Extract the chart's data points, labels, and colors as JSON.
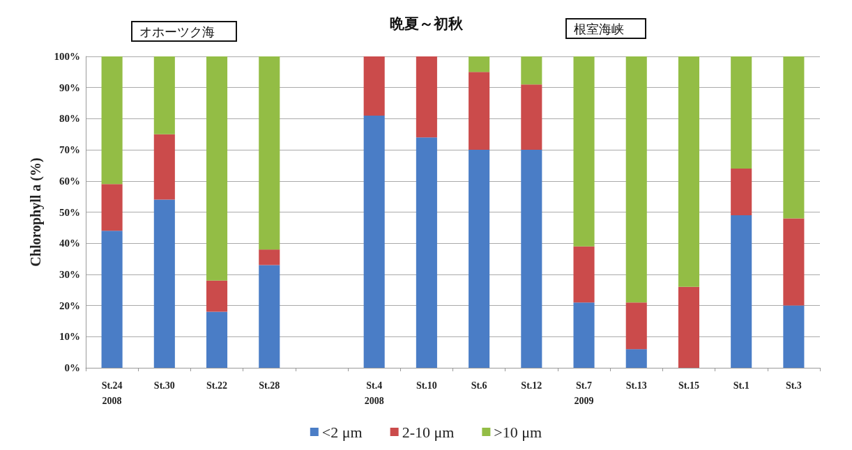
{
  "chart_data": {
    "type": "bar",
    "stacked": true,
    "title": "晩夏～初秋",
    "ylabel": "Chlorophyll a (%)",
    "annotations": [
      "オホーツク海",
      "根室海峡"
    ],
    "categories": [
      "St.24\n2008",
      "St.30",
      "St.22",
      "St.28",
      null,
      "St.4\n2008",
      "St.10",
      "St.6",
      "St.12",
      "St.7\n2009",
      "St.13",
      "St.15",
      "St.1",
      "St.3"
    ],
    "series": [
      {
        "name": "<2 μm",
        "color": "#4a7dc6",
        "values": [
          44,
          54,
          18,
          33,
          null,
          81,
          74,
          70,
          70,
          21,
          6,
          0,
          49,
          20
        ]
      },
      {
        "name": "2-10 μm",
        "color": "#cb4b4b",
        "values": [
          15,
          21,
          10,
          5,
          null,
          19,
          26,
          25,
          21,
          18,
          15,
          26,
          15,
          28
        ]
      },
      {
        "name": ">10 μm",
        "color": "#93bd45",
        "values": [
          41,
          25,
          72,
          62,
          null,
          0,
          0,
          5,
          9,
          61,
          79,
          74,
          36,
          52
        ]
      }
    ],
    "ylim": [
      0,
      100
    ],
    "yticks": [
      {
        "value": 0,
        "label": "0%"
      },
      {
        "value": 10,
        "label": "10%"
      },
      {
        "value": 20,
        "label": "20%"
      },
      {
        "value": 30,
        "label": "30%"
      },
      {
        "value": 40,
        "label": "40%"
      },
      {
        "value": 50,
        "label": "50%"
      },
      {
        "value": 60,
        "label": "60%"
      },
      {
        "value": 70,
        "label": "70%"
      },
      {
        "value": 80,
        "label": "80%"
      },
      {
        "value": 90,
        "label": "90%"
      },
      {
        "value": 100,
        "label": "100%"
      }
    ],
    "grid": "y",
    "legend": "bottom"
  }
}
